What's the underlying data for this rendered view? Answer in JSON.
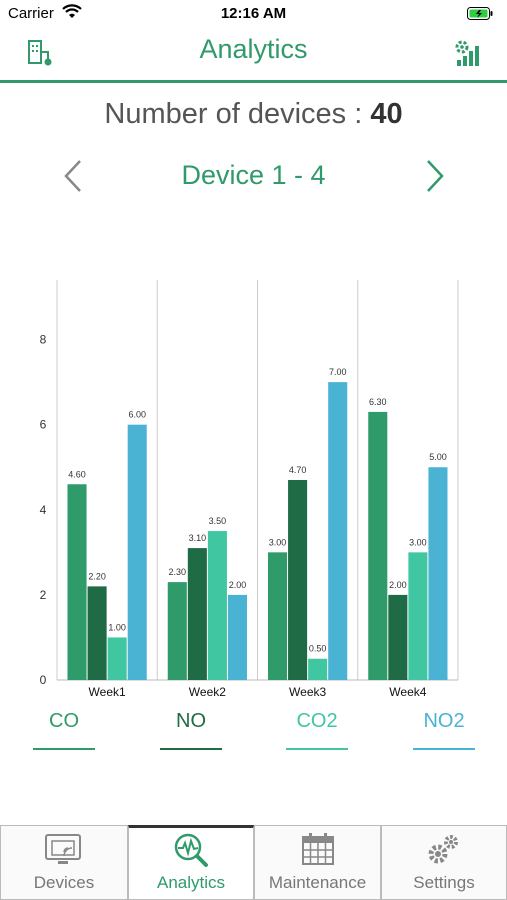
{
  "status_bar": {
    "carrier": "Carrier",
    "time": "12:16 AM"
  },
  "nav": {
    "title": "Analytics",
    "left_icon": "device-map-icon",
    "right_icon": "signal-settings-icon"
  },
  "summary": {
    "label": "Number of devices : ",
    "value": "40"
  },
  "pager": {
    "label": "Device 1 - 4"
  },
  "chart_data": {
    "type": "bar",
    "categories": [
      "Week1",
      "Week2",
      "Week3",
      "Week4"
    ],
    "series": [
      {
        "name": "CO",
        "color": "#2f9a6a",
        "values": [
          4.6,
          2.3,
          3.0,
          6.3
        ],
        "labels": [
          "4.60",
          "2.30",
          "3.00",
          "6.30"
        ]
      },
      {
        "name": "NO",
        "color": "#1f6b45",
        "values": [
          2.2,
          3.1,
          4.7,
          2.0
        ],
        "labels": [
          "2.20",
          "3.10",
          "4.70",
          "2.00"
        ]
      },
      {
        "name": "CO2",
        "color": "#41c6a2",
        "values": [
          1.0,
          3.5,
          0.5,
          3.0
        ],
        "labels": [
          "1.00",
          "3.50",
          "0.50",
          "3.00"
        ]
      },
      {
        "name": "NO2",
        "color": "#4ab3d3",
        "values": [
          6.0,
          2.0,
          7.0,
          5.0
        ],
        "labels": [
          "6.00",
          "2.00",
          "7.00",
          "5.00"
        ]
      }
    ],
    "yticks": [
      "0",
      "2",
      "4",
      "6",
      "8"
    ],
    "ylim": [
      0,
      9.4
    ],
    "grid": "vertical"
  },
  "legend": [
    {
      "label": "CO",
      "color": "#2f9a6a"
    },
    {
      "label": "NO",
      "color": "#1f6b45"
    },
    {
      "label": "CO2",
      "color": "#41c6a2"
    },
    {
      "label": "NO2",
      "color": "#4ab3d3"
    }
  ],
  "tabs": [
    {
      "label": "Devices",
      "icon": "devices-icon"
    },
    {
      "label": "Analytics",
      "icon": "analytics-icon",
      "active": true
    },
    {
      "label": "Maintenance",
      "icon": "calendar-icon"
    },
    {
      "label": "Settings",
      "icon": "gears-icon"
    }
  ]
}
